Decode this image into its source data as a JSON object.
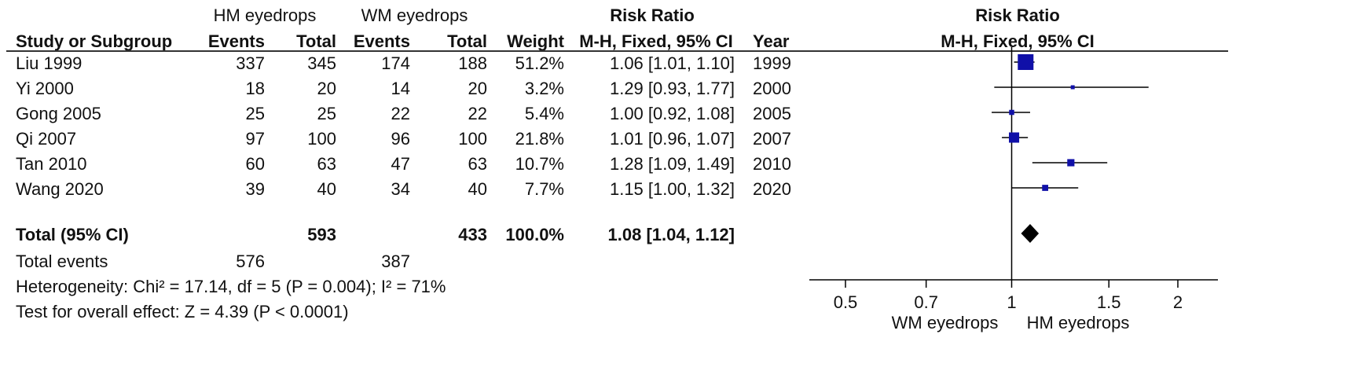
{
  "headers": {
    "group1": "HM eyedrops",
    "group2": "WM eyedrops",
    "rr_table": "Risk Ratio",
    "rr_plot": "Risk Ratio",
    "study": "Study or Subgroup",
    "events1": "Events",
    "total1": "Total",
    "events2": "Events",
    "total2": "Total",
    "weight": "Weight",
    "method": "M-H, Fixed, 95% CI",
    "year": "Year",
    "plot_method": "M-H, Fixed, 95% CI"
  },
  "studies": [
    {
      "name": "Liu 1999",
      "e1": "337",
      "t1": "345",
      "e2": "174",
      "t2": "188",
      "weight": "51.2%",
      "ci": "1.06 [1.01, 1.10]",
      "year": "1999"
    },
    {
      "name": "Yi 2000",
      "e1": "18",
      "t1": "20",
      "e2": "14",
      "t2": "20",
      "weight": "3.2%",
      "ci": "1.29 [0.93, 1.77]",
      "year": "2000"
    },
    {
      "name": "Gong 2005",
      "e1": "25",
      "t1": "25",
      "e2": "22",
      "t2": "22",
      "weight": "5.4%",
      "ci": "1.00 [0.92, 1.08]",
      "year": "2005"
    },
    {
      "name": "Qi 2007",
      "e1": "97",
      "t1": "100",
      "e2": "96",
      "t2": "100",
      "weight": "21.8%",
      "ci": "1.01 [0.96, 1.07]",
      "year": "2007"
    },
    {
      "name": "Tan 2010",
      "e1": "60",
      "t1": "63",
      "e2": "47",
      "t2": "63",
      "weight": "10.7%",
      "ci": "1.28 [1.09, 1.49]",
      "year": "2010"
    },
    {
      "name": "Wang 2020",
      "e1": "39",
      "t1": "40",
      "e2": "34",
      "t2": "40",
      "weight": "7.7%",
      "ci": "1.15 [1.00, 1.32]",
      "year": "2020"
    }
  ],
  "total": {
    "label": "Total (95% CI)",
    "t1": "593",
    "t2": "433",
    "weight": "100.0%",
    "ci": "1.08 [1.04, 1.12]"
  },
  "total_events": {
    "label": "Total events",
    "e1": "576",
    "e2": "387"
  },
  "heterogeneity": "Heterogeneity: Chi² = 17.14, df = 5 (P = 0.004); I² = 71%",
  "overall_effect": "Test for overall effect: Z = 4.39 (P < 0.0001)",
  "axis": {
    "favours_left": "WM eyedrops",
    "favours_right": "HM eyedrops"
  },
  "colors": {
    "study_marker": "#1010a8",
    "diamond": "#000000",
    "line": "#000000"
  },
  "chart_data": {
    "type": "forest",
    "scale": "log",
    "xlim": [
      0.45,
      2.3
    ],
    "ticks": [
      0.5,
      0.7,
      1,
      1.5,
      2
    ],
    "tick_labels": [
      "0.5",
      "0.7",
      "1",
      "1.5",
      "2"
    ],
    "reference": 1,
    "points": [
      {
        "label": "Liu 1999",
        "rr": 1.06,
        "lo": 1.01,
        "hi": 1.1,
        "weight": 51.2
      },
      {
        "label": "Yi 2000",
        "rr": 1.29,
        "lo": 0.93,
        "hi": 1.77,
        "weight": 3.2
      },
      {
        "label": "Gong 2005",
        "rr": 1.0,
        "lo": 0.92,
        "hi": 1.08,
        "weight": 5.4
      },
      {
        "label": "Qi 2007",
        "rr": 1.01,
        "lo": 0.96,
        "hi": 1.07,
        "weight": 21.8
      },
      {
        "label": "Tan 2010",
        "rr": 1.28,
        "lo": 1.09,
        "hi": 1.49,
        "weight": 10.7
      },
      {
        "label": "Wang 2020",
        "rr": 1.15,
        "lo": 1.0,
        "hi": 1.32,
        "weight": 7.7
      }
    ],
    "pooled": {
      "label": "Total (95% CI)",
      "rr": 1.08,
      "lo": 1.04,
      "hi": 1.12
    }
  }
}
